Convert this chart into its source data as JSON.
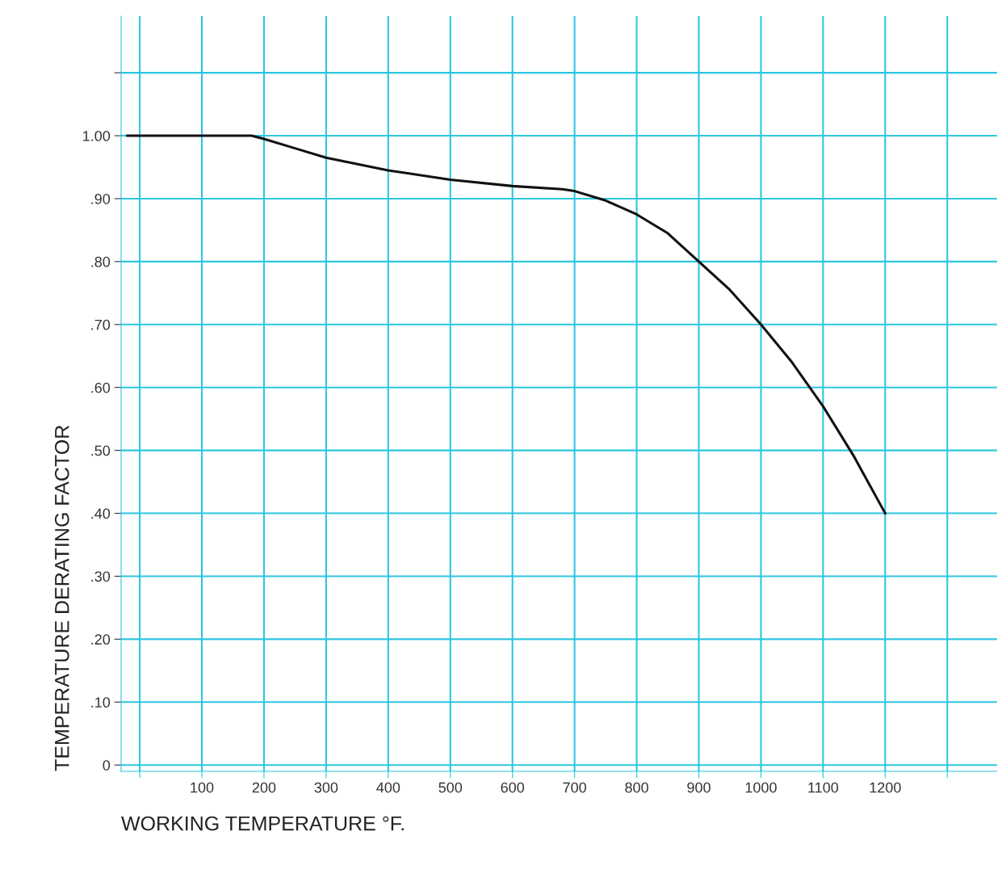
{
  "chart_data": {
    "type": "line",
    "xlabel": "WORKING TEMPERATURE °F.",
    "ylabel": "TEMPERATURE DERATING FACTOR",
    "x": [
      -20,
      0,
      100,
      180,
      200,
      250,
      300,
      400,
      500,
      600,
      680,
      700,
      750,
      800,
      850,
      900,
      950,
      1000,
      1050,
      1100,
      1150,
      1200
    ],
    "series": [
      {
        "color": "#111111",
        "values": [
          1.0,
          1.0,
          1.0,
          1.0,
          0.995,
          0.98,
          0.965,
          0.945,
          0.93,
          0.92,
          0.915,
          0.912,
          0.897,
          0.875,
          0.845,
          0.8,
          0.755,
          0.7,
          0.64,
          0.57,
          0.49,
          0.4
        ]
      }
    ],
    "xlim": [
      -30,
      1380
    ],
    "ylim": [
      -0.01,
      1.19
    ],
    "xticks": [
      {
        "value": 0,
        "label": null
      },
      100,
      200,
      300,
      400,
      500,
      600,
      700,
      800,
      900,
      1000,
      1100,
      1200,
      {
        "value": 1300,
        "label": null
      }
    ],
    "yticks": [
      {
        "value": 0,
        "label": "0"
      },
      {
        "value": 0.1,
        "label": ".10"
      },
      {
        "value": 0.2,
        "label": ".20"
      },
      {
        "value": 0.3,
        "label": ".30"
      },
      {
        "value": 0.4,
        "label": ".40"
      },
      {
        "value": 0.5,
        "label": ".50"
      },
      {
        "value": 0.6,
        "label": ".60"
      },
      {
        "value": 0.7,
        "label": ".70"
      },
      {
        "value": 0.8,
        "label": ".80"
      },
      {
        "value": 0.9,
        "label": ".90"
      },
      {
        "value": 1.0,
        "label": "1.00"
      },
      {
        "value": 1.1,
        "label": null
      }
    ],
    "grid": true,
    "marker": "none",
    "line_style": "solid",
    "legend": false
  }
}
